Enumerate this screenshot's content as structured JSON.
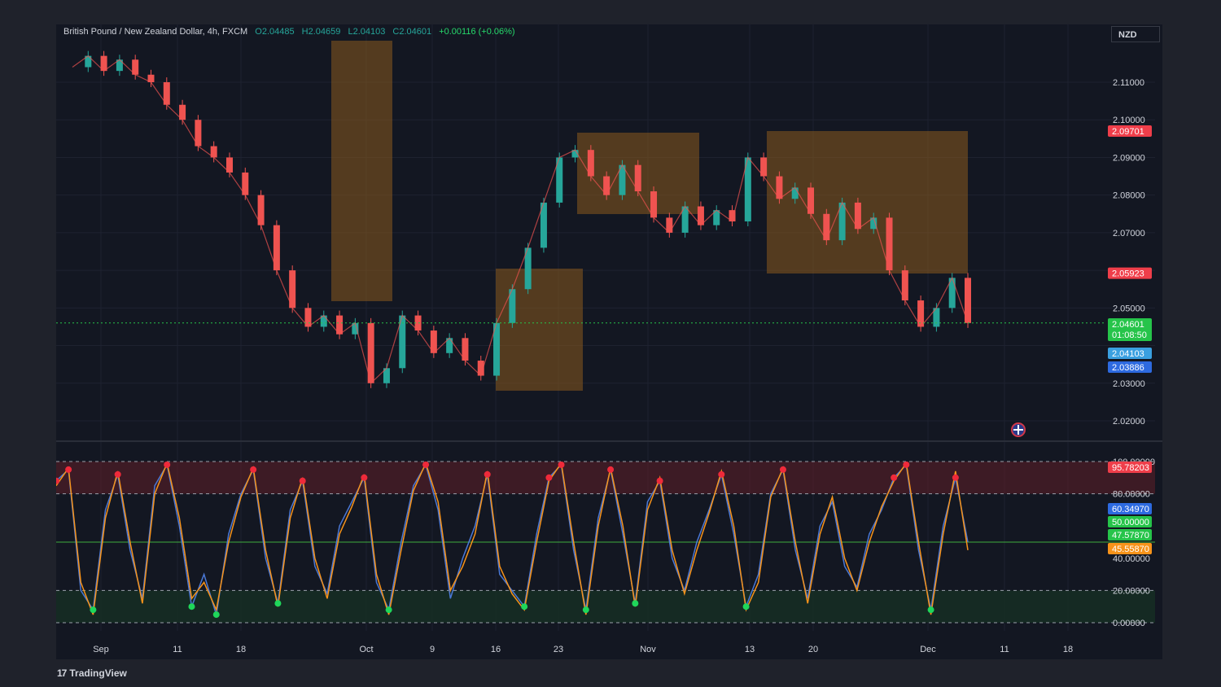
{
  "symbol": {
    "name": "British Pound / New Zealand Dollar, 4h, FXCM",
    "open": "O2.04485",
    "high": "H2.04659",
    "low": "L2.04103",
    "close": "C2.04601",
    "change": "+0.00116 (+0.06%)",
    "currency": "NZD"
  },
  "branding": {
    "logo_text": "TradingView",
    "logo_mark": "17"
  },
  "colors": {
    "bg": "#131722",
    "up": "#26a69a",
    "down": "#ef5350",
    "zone": "#8a5a1e",
    "resistance": "#ef3e4a",
    "support": "#3a7bd5",
    "k_line": "#4a78d6",
    "d_line": "#f7931a"
  },
  "chart_data": [
    {
      "type": "line",
      "title": "",
      "x_tick_labels": [
        "Sep",
        "11",
        "18",
        "Oct",
        "9",
        "16",
        "23",
        "Nov",
        "13",
        "20",
        "Dec",
        "11",
        "18"
      ],
      "y_tick_labels": [
        "2.11000",
        "2.10000",
        "2.09000",
        "2.08000",
        "2.07000",
        "2.05000",
        "2.03000",
        "2.02000"
      ],
      "ylim": [
        2.013,
        2.118
      ],
      "grid": true,
      "series": [
        {
          "values": [
            2.114,
            2.117,
            2.113,
            2.116,
            2.112,
            2.11,
            2.104,
            2.1,
            2.093,
            2.09,
            2.086,
            2.08,
            2.072,
            2.06,
            2.05,
            2.045,
            2.048,
            2.043,
            2.046,
            2.03,
            2.034,
            2.048,
            2.044,
            2.038,
            2.042,
            2.036,
            2.032,
            2.046,
            2.055,
            2.066,
            2.078,
            2.09,
            2.092,
            2.085,
            2.08,
            2.088,
            2.081,
            2.074,
            2.07,
            2.077,
            2.072,
            2.076,
            2.073,
            2.09,
            2.085,
            2.079,
            2.082,
            2.075,
            2.068,
            2.078,
            2.071,
            2.074,
            2.06,
            2.052,
            2.045,
            2.05,
            2.058,
            2.046
          ]
        }
      ],
      "price_labels": [
        {
          "value": 2.09701,
          "text": "2.09701",
          "color": "#ef3e4a"
        },
        {
          "value": 2.05923,
          "text": "2.05923",
          "color": "#ef3e4a"
        },
        {
          "value": 2.04601,
          "text": "2.04601",
          "color": "#26c44a"
        },
        {
          "value": 2.04103,
          "text": "2.04103",
          "color": "#3aa0e0"
        },
        {
          "value": 2.03886,
          "text": "2.03886",
          "color": "#2d6ae0"
        }
      ],
      "countdown": "01:08:50"
    },
    {
      "type": "line",
      "title": "",
      "y_tick_labels": [
        "100.00000",
        "80.00000",
        "40.00000",
        "20.00000",
        "0.00000"
      ],
      "ylim": [
        0,
        100
      ],
      "levels": [
        0,
        20,
        50,
        80,
        100
      ],
      "series": [
        {
          "values": [
            88,
            95,
            20,
            8,
            70,
            92,
            45,
            15,
            85,
            98,
            60,
            10,
            30,
            5,
            55,
            80,
            95,
            40,
            12,
            70,
            88,
            35,
            18,
            60,
            75,
            90,
            25,
            8,
            50,
            85,
            98,
            70,
            15,
            40,
            60,
            92,
            30,
            20,
            10,
            55,
            90,
            98,
            45,
            8,
            65,
            95,
            55,
            12,
            75,
            88,
            40,
            20,
            50,
            70,
            92,
            55,
            10,
            30,
            80,
            95,
            45,
            15,
            60,
            75,
            35,
            22,
            55,
            70,
            90,
            98,
            45,
            8,
            60,
            90,
            50
          ]
        },
        {
          "values": [
            85,
            96,
            25,
            5,
            65,
            94,
            50,
            12,
            80,
            99,
            65,
            15,
            25,
            8,
            50,
            78,
            96,
            45,
            10,
            65,
            90,
            40,
            15,
            55,
            72,
            92,
            30,
            5,
            45,
            82,
            99,
            75,
            20,
            35,
            55,
            94,
            35,
            18,
            8,
            50,
            88,
            99,
            50,
            5,
            60,
            96,
            60,
            10,
            70,
            90,
            45,
            18,
            45,
            68,
            94,
            60,
            8,
            25,
            78,
            96,
            50,
            12,
            55,
            78,
            40,
            20,
            50,
            72,
            88,
            99,
            50,
            5,
            55,
            94,
            45
          ]
        }
      ],
      "value_labels": [
        {
          "value": 95.78203,
          "text": "95.78203",
          "color": "#ef3e4a"
        },
        {
          "value": 60.3497,
          "text": "60.34970",
          "color": "#2d6ae0"
        },
        {
          "value": 50.0,
          "text": "50.00000",
          "color": "#26c44a"
        },
        {
          "value": 47.5787,
          "text": "47.57870",
          "color": "#26c44a"
        },
        {
          "value": 45.5587,
          "text": "45.55870",
          "color": "#f7931a"
        }
      ]
    }
  ]
}
